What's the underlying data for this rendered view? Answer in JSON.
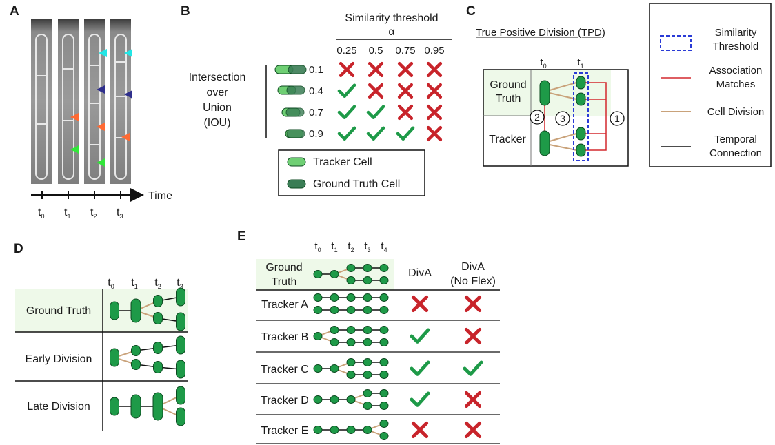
{
  "colors": {
    "cell_green": "#1e9a48",
    "cell_stroke": "#0c4a20",
    "tracker_cell": "#6fcf74",
    "gt_cell": "#3a7d55",
    "check_green": "#1e9a48",
    "cross_red": "#c8242b",
    "association_red": "#d3282e",
    "division_tan": "#c9a27a",
    "threshold_blue": "#2a3bd6",
    "gt_band": "#eef9e9",
    "arrow_cyan": "#22e6e6",
    "arrow_navy": "#2f2f8c",
    "arrow_orange": "#ff6a33",
    "arrow_green": "#33e63a"
  },
  "panelA": {
    "label": "A",
    "time_label": "Time",
    "ticks": [
      "t",
      "t",
      "t",
      "t"
    ],
    "tick_subs": [
      "0",
      "1",
      "2",
      "3"
    ]
  },
  "panelB": {
    "label": "B",
    "col_title_line1": "Similarity threshold",
    "col_title_line2": "α",
    "alphas": [
      "0.25",
      "0.5",
      "0.75",
      "0.95"
    ],
    "row_title": [
      "Intersection",
      "over",
      "Union",
      "(IOU)"
    ],
    "iou": [
      "0.1",
      "0.4",
      "0.7",
      "0.9"
    ],
    "matrix": [
      [
        "cross",
        "cross",
        "cross",
        "cross"
      ],
      [
        "check",
        "cross",
        "cross",
        "cross"
      ],
      [
        "check",
        "check",
        "cross",
        "cross"
      ],
      [
        "check",
        "check",
        "check",
        "cross"
      ]
    ],
    "legend": [
      "Tracker Cell",
      "Ground Truth Cell"
    ]
  },
  "panelC": {
    "label": "C",
    "title": "True Positive Division (TPD)",
    "t0": "t",
    "t0_sub": "0",
    "t1": "t",
    "t1_sub": "1",
    "gt_line1": "Ground",
    "gt_line2": "Truth",
    "tracker": "Tracker",
    "num1": "1",
    "num2": "2",
    "num3": "3",
    "legend": [
      {
        "line1": "Similarity",
        "line2": "Threshold"
      },
      {
        "line1": "Association",
        "line2": "Matches"
      },
      {
        "line1": "Cell Division",
        "line2": ""
      },
      {
        "line1": "Temporal",
        "line2": "Connection"
      }
    ]
  },
  "panelD": {
    "label": "D",
    "ticks": [
      "t",
      "t",
      "t",
      "t"
    ],
    "tick_subs": [
      "0",
      "1",
      "2",
      "3"
    ],
    "rows": [
      "Ground Truth",
      "Early Division",
      "Late Division"
    ]
  },
  "panelE": {
    "label": "E",
    "ticks": [
      "t",
      "t",
      "t",
      "t",
      "t"
    ],
    "tick_subs": [
      "0",
      "1",
      "2",
      "3",
      "4"
    ],
    "gt_line1": "Ground",
    "gt_line2": "Truth",
    "col_diva": "DivA",
    "col_noflex_line1": "DivA",
    "col_noflex_line2": "(No Flex)",
    "rows": [
      {
        "name": "Tracker A",
        "diva": "cross",
        "noflex": "cross"
      },
      {
        "name": "Tracker B",
        "diva": "check",
        "noflex": "cross"
      },
      {
        "name": "Tracker C",
        "diva": "check",
        "noflex": "check"
      },
      {
        "name": "Tracker D",
        "diva": "check",
        "noflex": "cross"
      },
      {
        "name": "Tracker E",
        "diva": "cross",
        "noflex": "cross"
      }
    ]
  }
}
